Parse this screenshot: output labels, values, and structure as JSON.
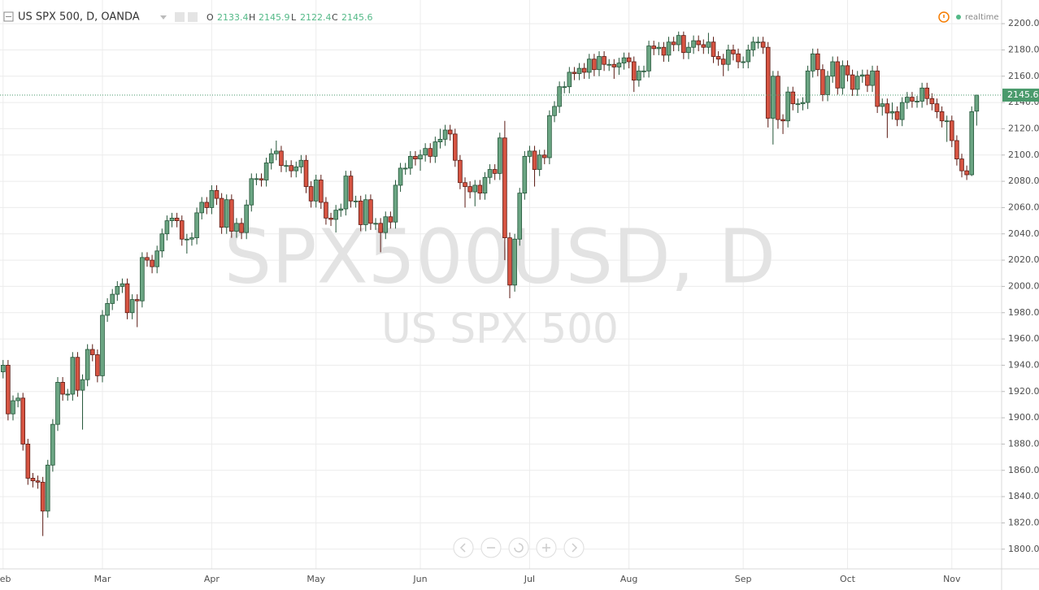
{
  "chart_data": {
    "type": "candlestick",
    "title": "US SPX 500, D, OANDA",
    "ohlc_labels": [
      "O",
      "H",
      "L",
      "C"
    ],
    "watermark": "SPX500USD, D",
    "watermark_subtitle": "US SPX 500",
    "status": "realtime",
    "categories": [
      "Feb",
      null,
      null,
      null,
      null,
      null,
      null,
      null,
      null,
      null,
      null,
      null,
      null,
      null,
      null,
      null,
      null,
      null,
      null,
      null,
      "Mar",
      null,
      null,
      null,
      null,
      null,
      null,
      null,
      null,
      null,
      null,
      null,
      null,
      null,
      null,
      null,
      null,
      null,
      null,
      null,
      null,
      null,
      "Apr",
      null,
      null,
      null,
      null,
      null,
      null,
      null,
      null,
      null,
      null,
      null,
      null,
      null,
      null,
      null,
      null,
      null,
      null,
      null,
      null,
      "May",
      null,
      null,
      null,
      null,
      null,
      null,
      null,
      null,
      null,
      null,
      null,
      null,
      null,
      null,
      null,
      null,
      null,
      null,
      null,
      null,
      "Jun",
      null,
      null,
      null,
      null,
      null,
      null,
      null,
      null,
      null,
      null,
      null,
      null,
      null,
      null,
      null,
      null,
      null,
      null,
      null,
      null,
      null,
      "Jul",
      null,
      null,
      null,
      null,
      null,
      null,
      null,
      null,
      null,
      null,
      null,
      null,
      null,
      null,
      null,
      null,
      null,
      null,
      null,
      "Aug",
      null,
      null,
      null,
      null,
      null,
      null,
      null,
      null,
      null,
      null,
      null,
      null,
      null,
      null,
      null,
      null,
      null,
      null,
      null,
      null,
      null,
      null,
      "Sep",
      null,
      null,
      null,
      null,
      null,
      null,
      null,
      null,
      null,
      null,
      null,
      null,
      null,
      null,
      null,
      null,
      null,
      null,
      null,
      null,
      "Oct",
      null,
      null,
      null,
      null,
      null,
      null,
      null,
      null,
      null,
      null,
      null,
      null,
      null,
      null,
      null,
      null,
      null,
      null,
      null,
      null,
      "Nov",
      null,
      null,
      null,
      null,
      null
    ],
    "open": [
      1935,
      1940,
      1903,
      1913,
      1915,
      1880,
      1854,
      1852,
      1851,
      1829,
      1864,
      1895,
      1927,
      1918,
      1918,
      1946,
      1921,
      1929,
      1952,
      1948,
      1932,
      1978,
      1987,
      1994,
      2000,
      2002,
      1980,
      1990,
      1989,
      2022,
      2020,
      2015,
      2027,
      2040,
      2050,
      2052,
      2050,
      2036,
      2036,
      2037,
      2056,
      2064,
      2060,
      2073,
      2067,
      2045,
      2066,
      2042,
      2048,
      2041,
      2062,
      2082,
      2082,
      2081,
      2094,
      2101,
      2103,
      2092,
      2092,
      2088,
      2091,
      2096,
      2076,
      2065,
      2081,
      2064,
      2052,
      2051,
      2058,
      2059,
      2084,
      2065,
      2065,
      2047,
      2066,
      2048,
      2048,
      2041,
      2053,
      2049,
      2077,
      2090,
      2090,
      2099,
      2097,
      2100,
      2105,
      2099,
      2110,
      2112,
      2119,
      2116,
      2096,
      2079,
      2076,
      2072,
      2077,
      2071,
      2083,
      2089,
      2086,
      2113,
      2037,
      2001,
      2036,
      2071,
      2099,
      2103,
      2089,
      2100,
      2098,
      2130,
      2137,
      2152,
      2152,
      2163,
      2162,
      2166,
      2163,
      2173,
      2165,
      2175,
      2169,
      2169,
      2167,
      2170,
      2174,
      2171,
      2157,
      2164,
      2164,
      2183,
      2181,
      2182,
      2176,
      2186,
      2184,
      2191,
      2178,
      2182,
      2187,
      2184,
      2182,
      2186,
      2175,
      2173,
      2169,
      2180,
      2177,
      2171,
      2171,
      2180,
      2186,
      2186,
      2182,
      2128,
      2160,
      2127,
      2126,
      2148,
      2139,
      2139,
      2140,
      2164,
      2177,
      2165,
      2146,
      2160,
      2171,
      2151,
      2168,
      2161,
      2150,
      2160,
      2161,
      2153,
      2164,
      2137,
      2139,
      2132,
      2133,
      2127,
      2140,
      2144,
      2141,
      2141,
      2151,
      2143,
      2139,
      2133,
      2126,
      2126,
      2111,
      2097,
      2088,
      2085,
      2133.4
    ],
    "high": [
      1944,
      1944,
      1917,
      1919,
      1919,
      1884,
      1858,
      1856,
      1855,
      1868,
      1899,
      1931,
      1931,
      1922,
      1950,
      1950,
      1933,
      1956,
      1956,
      1952,
      1982,
      1991,
      1998,
      2004,
      2006,
      2006,
      1994,
      1994,
      2026,
      2026,
      2024,
      2031,
      2044,
      2054,
      2056,
      2056,
      2054,
      2040,
      2041,
      2060,
      2068,
      2068,
      2077,
      2077,
      2071,
      2070,
      2070,
      2052,
      2052,
      2066,
      2086,
      2086,
      2086,
      2098,
      2105,
      2111,
      2107,
      2096,
      2096,
      2095,
      2100,
      2100,
      2080,
      2085,
      2085,
      2068,
      2056,
      2062,
      2063,
      2088,
      2088,
      2069,
      2069,
      2070,
      2070,
      2052,
      2052,
      2057,
      2057,
      2081,
      2094,
      2094,
      2103,
      2103,
      2104,
      2109,
      2109,
      2114,
      2120,
      2123,
      2123,
      2120,
      2100,
      2083,
      2080,
      2081,
      2081,
      2087,
      2093,
      2093,
      2117,
      2126,
      2041,
      2040,
      2075,
      2103,
      2107,
      2107,
      2104,
      2104,
      2134,
      2141,
      2156,
      2156,
      2167,
      2167,
      2170,
      2170,
      2177,
      2177,
      2179,
      2179,
      2173,
      2173,
      2174,
      2178,
      2178,
      2175,
      2168,
      2168,
      2187,
      2187,
      2186,
      2186,
      2190,
      2190,
      2194,
      2194,
      2186,
      2191,
      2191,
      2188,
      2193,
      2190,
      2179,
      2177,
      2184,
      2184,
      2181,
      2175,
      2184,
      2190,
      2190,
      2190,
      2186,
      2164,
      2164,
      2131,
      2152,
      2152,
      2143,
      2144,
      2168,
      2181,
      2181,
      2169,
      2164,
      2175,
      2175,
      2172,
      2172,
      2165,
      2164,
      2165,
      2165,
      2168,
      2168,
      2143,
      2143,
      2140,
      2137,
      2144,
      2148,
      2148,
      2145,
      2155,
      2155,
      2147,
      2143,
      2137,
      2130,
      2130,
      2115,
      2101,
      2092,
      2137,
      2145.9
    ],
    "low": [
      1930,
      1898,
      1898,
      1908,
      1875,
      1849,
      1847,
      1846,
      1810,
      1824,
      1859,
      1890,
      1913,
      1913,
      1913,
      1916,
      1891,
      1924,
      1943,
      1927,
      1927,
      1973,
      1982,
      1989,
      1995,
      1975,
      1975,
      1969,
      1984,
      2015,
      2010,
      2010,
      2022,
      2035,
      2045,
      2045,
      2031,
      2025,
      2031,
      2032,
      2051,
      2055,
      2055,
      2062,
      2040,
      2040,
      2037,
      2037,
      2036,
      2036,
      2057,
      2077,
      2076,
      2076,
      2089,
      2096,
      2087,
      2087,
      2083,
      2083,
      2086,
      2071,
      2060,
      2060,
      2059,
      2047,
      2046,
      2041,
      2053,
      2054,
      2060,
      2060,
      2042,
      2042,
      2043,
      2043,
      2026,
      2036,
      2044,
      2044,
      2072,
      2085,
      2085,
      2092,
      2088,
      2095,
      2094,
      2094,
      2105,
      2107,
      2111,
      2091,
      2074,
      2060,
      2067,
      2061,
      2066,
      2066,
      2078,
      2081,
      2081,
      2020,
      1991,
      1996,
      2031,
      2066,
      2094,
      2076,
      2084,
      2093,
      2093,
      2125,
      2132,
      2147,
      2147,
      2157,
      2157,
      2158,
      2158,
      2160,
      2160,
      2164,
      2164,
      2158,
      2161,
      2165,
      2166,
      2148,
      2152,
      2159,
      2159,
      2176,
      2176,
      2171,
      2171,
      2179,
      2179,
      2173,
      2173,
      2177,
      2179,
      2177,
      2177,
      2170,
      2168,
      2160,
      2164,
      2172,
      2166,
      2166,
      2166,
      2175,
      2181,
      2177,
      2121,
      2108,
      2120,
      2116,
      2121,
      2134,
      2132,
      2134,
      2135,
      2159,
      2160,
      2141,
      2141,
      2155,
      2146,
      2146,
      2156,
      2145,
      2145,
      2155,
      2148,
      2148,
      2132,
      2130,
      2113,
      2127,
      2122,
      2122,
      2135,
      2136,
      2136,
      2136,
      2138,
      2134,
      2128,
      2121,
      2110,
      2106,
      2092,
      2083,
      2081,
      2084,
      2122.4
    ],
    "close": [
      1940,
      1903,
      1913,
      1915,
      1880,
      1854,
      1852,
      1851,
      1829,
      1864,
      1895,
      1927,
      1918,
      1918,
      1946,
      1921,
      1929,
      1952,
      1948,
      1932,
      1978,
      1987,
      1994,
      2000,
      2002,
      1980,
      1990,
      1989,
      2022,
      2020,
      2015,
      2027,
      2040,
      2050,
      2052,
      2050,
      2036,
      2036,
      2037,
      2056,
      2064,
      2060,
      2073,
      2067,
      2045,
      2066,
      2042,
      2048,
      2041,
      2062,
      2082,
      2082,
      2081,
      2094,
      2101,
      2103,
      2092,
      2092,
      2088,
      2091,
      2096,
      2076,
      2065,
      2081,
      2064,
      2052,
      2051,
      2058,
      2059,
      2084,
      2065,
      2065,
      2047,
      2066,
      2048,
      2048,
      2041,
      2053,
      2049,
      2077,
      2090,
      2090,
      2099,
      2097,
      2100,
      2105,
      2099,
      2110,
      2112,
      2119,
      2116,
      2096,
      2079,
      2076,
      2072,
      2077,
      2071,
      2083,
      2089,
      2086,
      2113,
      2037,
      2001,
      2036,
      2071,
      2099,
      2103,
      2089,
      2100,
      2098,
      2130,
      2137,
      2152,
      2152,
      2163,
      2162,
      2166,
      2163,
      2173,
      2165,
      2175,
      2169,
      2169,
      2167,
      2170,
      2174,
      2171,
      2157,
      2164,
      2164,
      2183,
      2181,
      2182,
      2176,
      2186,
      2184,
      2191,
      2178,
      2182,
      2187,
      2184,
      2182,
      2186,
      2175,
      2173,
      2169,
      2180,
      2177,
      2171,
      2171,
      2180,
      2186,
      2186,
      2182,
      2128,
      2160,
      2127,
      2126,
      2148,
      2139,
      2139,
      2140,
      2164,
      2177,
      2165,
      2146,
      2160,
      2171,
      2151,
      2168,
      2161,
      2150,
      2160,
      2161,
      2153,
      2164,
      2137,
      2139,
      2132,
      2133,
      2127,
      2140,
      2144,
      2141,
      2141,
      2151,
      2143,
      2139,
      2133,
      2126,
      2126,
      2111,
      2097,
      2088,
      2085,
      2133,
      2145.6
    ],
    "up_color": "#6ba583",
    "up_border": "#225437",
    "down_color": "#d75442",
    "down_border": "#5b1a13",
    "price_line_color": "#4a9a6c",
    "ylim": [
      1785,
      2218
    ],
    "yticks": [
      {
        "value": 1800,
        "label": "1800.0"
      },
      {
        "value": 1820,
        "label": "1820.0"
      },
      {
        "value": 1840,
        "label": "1840.0"
      },
      {
        "value": 1860,
        "label": "1860.0"
      },
      {
        "value": 1880,
        "label": "1880.0"
      },
      {
        "value": 1900,
        "label": "1900.0"
      },
      {
        "value": 1920,
        "label": "1920.0"
      },
      {
        "value": 1940,
        "label": "1940.0"
      },
      {
        "value": 1960,
        "label": "1960.0"
      },
      {
        "value": 1980,
        "label": "1980.0"
      },
      {
        "value": 2000,
        "label": "2000.0"
      },
      {
        "value": 2020,
        "label": "2020.0"
      },
      {
        "value": 2040,
        "label": "2040.0"
      },
      {
        "value": 2060,
        "label": "2060.0"
      },
      {
        "value": 2080,
        "label": "2080.0"
      },
      {
        "value": 2100,
        "label": "2100.0"
      },
      {
        "value": 2120,
        "label": "2120.0"
      },
      {
        "value": 2140,
        "label": "2140.0"
      },
      {
        "value": 2160,
        "label": "2160.0"
      },
      {
        "value": 2180,
        "label": "2180.0"
      },
      {
        "value": 2200,
        "label": "2200.0"
      }
    ],
    "grid": true
  }
}
